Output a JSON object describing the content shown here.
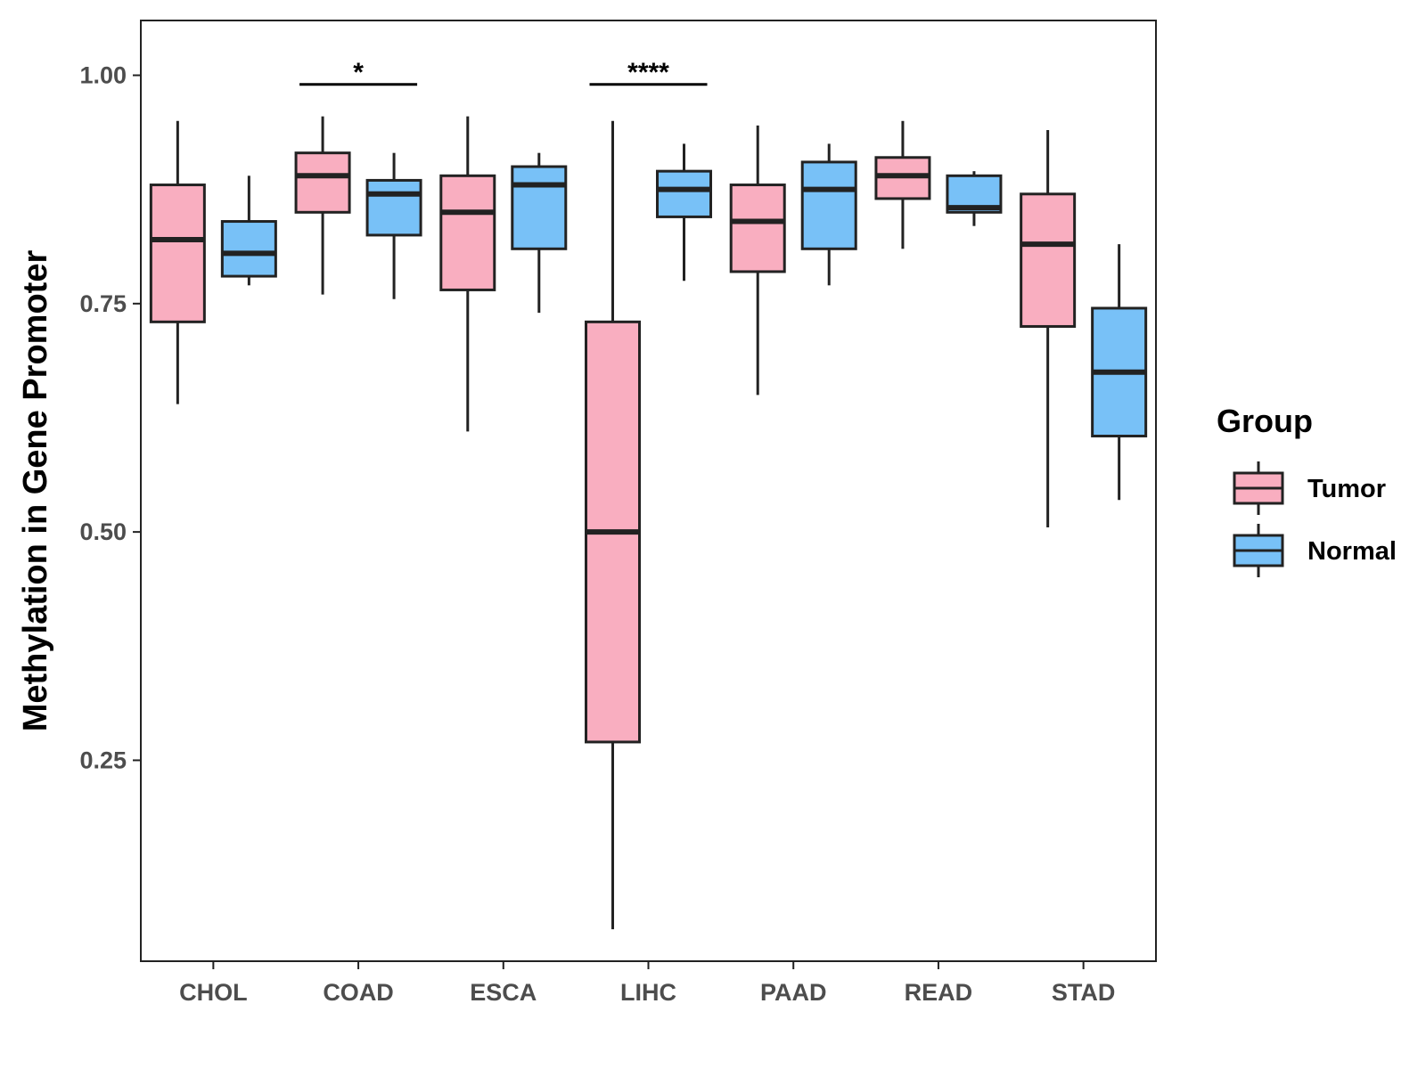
{
  "chart_data": {
    "type": "boxplot",
    "title": "",
    "xlabel": "",
    "ylabel": "Methylation in Gene Promoter",
    "ylim": [
      0.03,
      1.06
    ],
    "yticks": [
      0.25,
      0.5,
      0.75,
      1.0
    ],
    "ytick_labels": [
      "0.25",
      "0.50",
      "0.75",
      "1.00"
    ],
    "grid": false,
    "categories": [
      "CHOL",
      "COAD",
      "ESCA",
      "LIHC",
      "PAAD",
      "READ",
      "STAD"
    ],
    "legend": {
      "title": "Group",
      "position": "right",
      "entries": [
        {
          "name": "Tumor",
          "color": "#f9aec0"
        },
        {
          "name": "Normal",
          "color": "#78c1f7"
        }
      ]
    },
    "series": [
      {
        "name": "Tumor",
        "color": "#f9aec0",
        "boxes": [
          {
            "category": "CHOL",
            "min": 0.64,
            "q1": 0.73,
            "median": 0.82,
            "q3": 0.88,
            "max": 0.95
          },
          {
            "category": "COAD",
            "min": 0.76,
            "q1": 0.85,
            "median": 0.89,
            "q3": 0.915,
            "max": 0.955
          },
          {
            "category": "ESCA",
            "min": 0.61,
            "q1": 0.765,
            "median": 0.85,
            "q3": 0.89,
            "max": 0.955
          },
          {
            "category": "LIHC",
            "min": 0.065,
            "q1": 0.27,
            "median": 0.5,
            "q3": 0.73,
            "max": 0.95
          },
          {
            "category": "PAAD",
            "min": 0.65,
            "q1": 0.785,
            "median": 0.84,
            "q3": 0.88,
            "max": 0.945
          },
          {
            "category": "READ",
            "min": 0.81,
            "q1": 0.865,
            "median": 0.89,
            "q3": 0.91,
            "max": 0.95
          },
          {
            "category": "STAD",
            "min": 0.505,
            "q1": 0.725,
            "median": 0.815,
            "q3": 0.87,
            "max": 0.94
          }
        ]
      },
      {
        "name": "Normal",
        "color": "#78c1f7",
        "boxes": [
          {
            "category": "CHOL",
            "min": 0.77,
            "q1": 0.78,
            "median": 0.805,
            "q3": 0.84,
            "max": 0.89
          },
          {
            "category": "COAD",
            "min": 0.755,
            "q1": 0.825,
            "median": 0.87,
            "q3": 0.885,
            "max": 0.915
          },
          {
            "category": "ESCA",
            "min": 0.74,
            "q1": 0.81,
            "median": 0.88,
            "q3": 0.9,
            "max": 0.915
          },
          {
            "category": "LIHC",
            "min": 0.775,
            "q1": 0.845,
            "median": 0.875,
            "q3": 0.895,
            "max": 0.925
          },
          {
            "category": "PAAD",
            "min": 0.77,
            "q1": 0.81,
            "median": 0.875,
            "q3": 0.905,
            "max": 0.925
          },
          {
            "category": "READ",
            "min": 0.835,
            "q1": 0.85,
            "median": 0.855,
            "q3": 0.89,
            "max": 0.895
          },
          {
            "category": "STAD",
            "min": 0.535,
            "q1": 0.605,
            "median": 0.675,
            "q3": 0.745,
            "max": 0.815
          }
        ]
      }
    ],
    "annotations": [
      {
        "category": "COAD",
        "label": "*",
        "y": 0.99
      },
      {
        "category": "LIHC",
        "label": "****",
        "y": 0.99
      }
    ]
  }
}
